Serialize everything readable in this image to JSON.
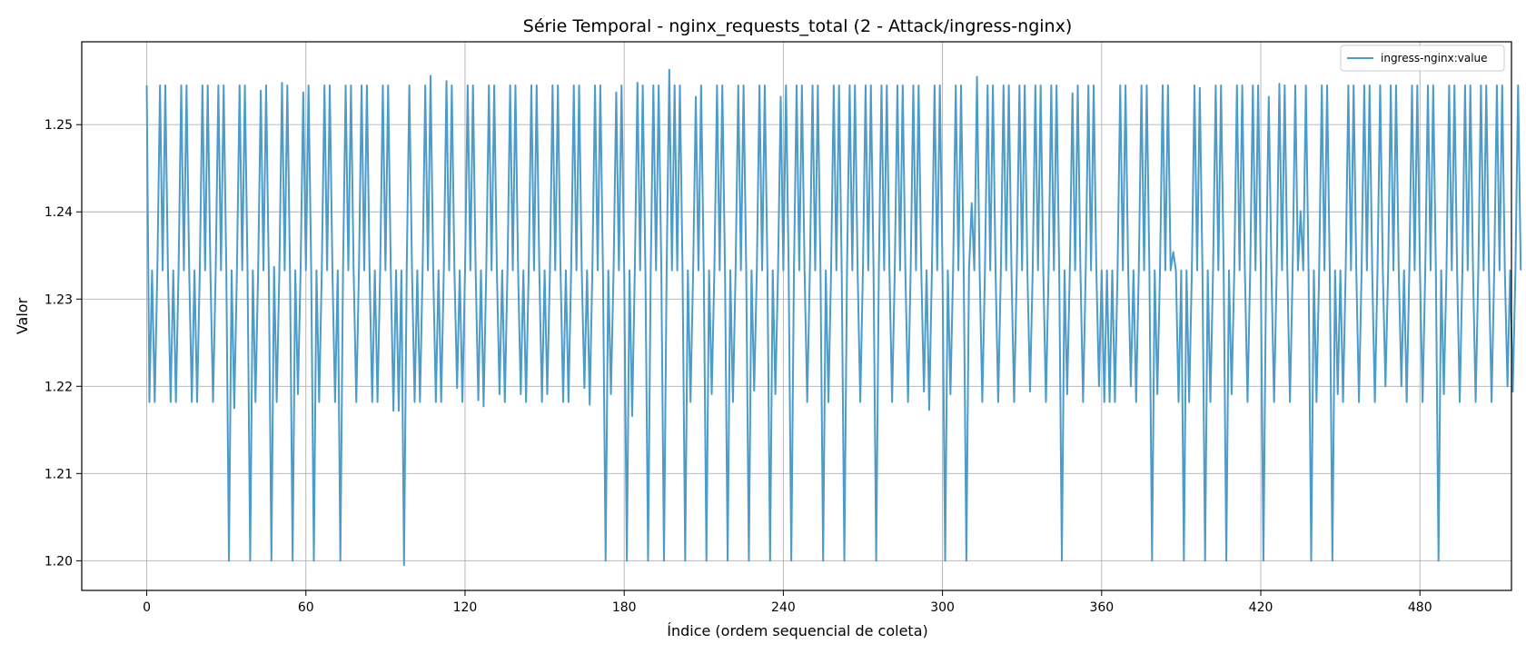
{
  "chart_data": {
    "type": "line",
    "title": "Série Temporal - nginx_requests_total (2 - Attack/ingress-nginx)",
    "xlabel": "Índice (ordem sequencial de coleta)",
    "ylabel": "Valor",
    "xlim": [
      -24.5,
      514.5
    ],
    "ylim": [
      1.1966,
      1.2595
    ],
    "grid": true,
    "x_ticks": [
      0,
      60,
      120,
      180,
      240,
      300,
      360,
      420,
      480
    ],
    "y_ticks": [
      1.2,
      1.21,
      1.22,
      1.23,
      1.24,
      1.25
    ],
    "x_tick_labels": [
      "0",
      "60",
      "120",
      "180",
      "240",
      "300",
      "360",
      "420",
      "480"
    ],
    "y_tick_labels": [
      "1.20",
      "1.21",
      "1.22",
      "1.23",
      "1.24",
      "1.25"
    ],
    "legend": {
      "position": "top-right",
      "entries": [
        "ingress-nginx:value"
      ]
    },
    "series": [
      {
        "name": "ingress-nginx:value",
        "color": "#4c9bc8",
        "x_start": 0,
        "x_step": 1,
        "values": [
          1.2545,
          1.2182,
          1.2333,
          1.2182,
          1.2333,
          1.2545,
          1.2333,
          1.2545,
          1.2333,
          1.2182,
          1.2333,
          1.2182,
          1.2333,
          1.2545,
          1.2333,
          1.2545,
          1.2333,
          1.2182,
          1.2333,
          1.2182,
          1.2333,
          1.2545,
          1.2333,
          1.2545,
          1.2333,
          1.2182,
          1.2333,
          1.2545,
          1.2333,
          1.2545,
          1.2333,
          1.2,
          1.2333,
          1.2175,
          1.2333,
          1.2545,
          1.2333,
          1.2545,
          1.2333,
          1.2,
          1.2333,
          1.2182,
          1.2333,
          1.2539,
          1.2333,
          1.2545,
          1.2333,
          1.2,
          1.2337,
          1.2182,
          1.2333,
          1.2548,
          1.2333,
          1.2545,
          1.2333,
          1.2,
          1.2333,
          1.2191,
          1.2333,
          1.2537,
          1.2333,
          1.2545,
          1.2333,
          1.2,
          1.2333,
          1.2182,
          1.2333,
          1.2545,
          1.2333,
          1.2545,
          1.2333,
          1.2182,
          1.2333,
          1.2,
          1.2333,
          1.2545,
          1.2333,
          1.2545,
          1.2333,
          1.2182,
          1.2333,
          1.2545,
          1.2333,
          1.2545,
          1.2333,
          1.2182,
          1.2333,
          1.2182,
          1.2333,
          1.2545,
          1.2333,
          1.2545,
          1.2333,
          1.2172,
          1.2333,
          1.2172,
          1.2333,
          1.1995,
          1.2333,
          1.2545,
          1.2333,
          1.2182,
          1.2333,
          1.2182,
          1.2333,
          1.2545,
          1.2333,
          1.2556,
          1.2333,
          1.2182,
          1.2333,
          1.2182,
          1.2333,
          1.255,
          1.2333,
          1.2545,
          1.2333,
          1.2198,
          1.2333,
          1.2182,
          1.2333,
          1.2545,
          1.2333,
          1.2545,
          1.2333,
          1.2184,
          1.2333,
          1.2177,
          1.2333,
          1.2545,
          1.2333,
          1.2545,
          1.2333,
          1.2191,
          1.2333,
          1.2182,
          1.2333,
          1.2545,
          1.2333,
          1.2545,
          1.2333,
          1.2191,
          1.2333,
          1.2182,
          1.2333,
          1.2545,
          1.2333,
          1.2545,
          1.2333,
          1.2182,
          1.2333,
          1.2191,
          1.2333,
          1.2545,
          1.2333,
          1.2545,
          1.2333,
          1.2182,
          1.2333,
          1.2182,
          1.2333,
          1.2545,
          1.2333,
          1.2545,
          1.2333,
          1.2198,
          1.2333,
          1.2179,
          1.2333,
          1.2545,
          1.2333,
          1.2545,
          1.2333,
          1.2,
          1.2333,
          1.2191,
          1.2333,
          1.2537,
          1.2333,
          1.2545,
          1.2333,
          1.2,
          1.2333,
          1.2166,
          1.2333,
          1.2548,
          1.2333,
          1.2545,
          1.2333,
          1.2,
          1.2333,
          1.2545,
          1.2333,
          1.2545,
          1.2333,
          1.2,
          1.2333,
          1.2563,
          1.2333,
          1.2545,
          1.2333,
          1.2545,
          1.2333,
          1.2,
          1.2333,
          1.2182,
          1.2333,
          1.2532,
          1.2333,
          1.2545,
          1.2333,
          1.2,
          1.2333,
          1.2191,
          1.2333,
          1.2545,
          1.2333,
          1.2545,
          1.2333,
          1.2,
          1.2333,
          1.2182,
          1.2333,
          1.2545,
          1.2333,
          1.2545,
          1.2333,
          1.2,
          1.2333,
          1.2195,
          1.2333,
          1.2545,
          1.2333,
          1.2545,
          1.2333,
          1.2,
          1.2333,
          1.2191,
          1.2333,
          1.2532,
          1.2333,
          1.2545,
          1.2333,
          1.2,
          1.2333,
          1.2545,
          1.2333,
          1.2545,
          1.2333,
          1.2182,
          1.2333,
          1.2545,
          1.2333,
          1.2545,
          1.2333,
          1.2,
          1.2333,
          1.2182,
          1.2333,
          1.2545,
          1.2333,
          1.2545,
          1.2333,
          1.2,
          1.2333,
          1.2545,
          1.2333,
          1.2545,
          1.2333,
          1.2182,
          1.2333,
          1.2545,
          1.2333,
          1.2545,
          1.2333,
          1.2,
          1.2333,
          1.2545,
          1.2333,
          1.2545,
          1.2333,
          1.2182,
          1.2333,
          1.2545,
          1.2333,
          1.2545,
          1.2333,
          1.2182,
          1.2333,
          1.2545,
          1.2333,
          1.2545,
          1.2333,
          1.2194,
          1.2333,
          1.2173,
          1.2333,
          1.2545,
          1.2333,
          1.2545,
          1.2333,
          1.2,
          1.2333,
          1.2191,
          1.2333,
          1.2545,
          1.2333,
          1.2545,
          1.2333,
          1.2,
          1.2333,
          1.241,
          1.2333,
          1.2555,
          1.2333,
          1.2182,
          1.2333,
          1.2545,
          1.2333,
          1.2545,
          1.2333,
          1.2182,
          1.2333,
          1.2545,
          1.2333,
          1.2545,
          1.2333,
          1.2182,
          1.2333,
          1.2545,
          1.2333,
          1.2545,
          1.2333,
          1.2194,
          1.2333,
          1.2545,
          1.2333,
          1.2545,
          1.2333,
          1.2182,
          1.2333,
          1.2545,
          1.2333,
          1.2545,
          1.2333,
          1.2,
          1.2333,
          1.2191,
          1.2333,
          1.2536,
          1.2333,
          1.2545,
          1.2333,
          1.2182,
          1.2333,
          1.2545,
          1.2333,
          1.2545,
          1.2333,
          1.22,
          1.2333,
          1.2182,
          1.2333,
          1.2182,
          1.2333,
          1.2182,
          1.2333,
          1.2545,
          1.2333,
          1.2545,
          1.2333,
          1.22,
          1.2333,
          1.2182,
          1.2333,
          1.2545,
          1.2333,
          1.2545,
          1.2333,
          1.2,
          1.2333,
          1.2191,
          1.2333,
          1.2545,
          1.2333,
          1.2545,
          1.2333,
          1.2354,
          1.2333,
          1.2182,
          1.2333,
          1.2,
          1.2333,
          1.2182,
          1.2333,
          1.2545,
          1.2333,
          1.2542,
          1.2333,
          1.2,
          1.2333,
          1.2182,
          1.2333,
          1.2545,
          1.2333,
          1.2545,
          1.2333,
          1.2,
          1.2333,
          1.2191,
          1.2333,
          1.2545,
          1.2333,
          1.2545,
          1.2333,
          1.2182,
          1.2333,
          1.2545,
          1.2333,
          1.2545,
          1.2333,
          1.2,
          1.2333,
          1.2532,
          1.2333,
          1.2182,
          1.2333,
          1.2547,
          1.2333,
          1.2545,
          1.2333,
          1.2182,
          1.2333,
          1.2545,
          1.2333,
          1.2401,
          1.2333,
          1.2545,
          1.2333,
          1.2,
          1.2333,
          1.2182,
          1.2333,
          1.2545,
          1.2333,
          1.2545,
          1.2333,
          1.2,
          1.2333,
          1.2191,
          1.2333,
          1.2182,
          1.2333,
          1.2545,
          1.2333,
          1.2545,
          1.2333,
          1.2182,
          1.2333,
          1.2545,
          1.2333,
          1.2545,
          1.2333,
          1.2182,
          1.2333,
          1.2545,
          1.2333,
          1.22,
          1.2333,
          1.2545,
          1.2333,
          1.2545,
          1.2333,
          1.22,
          1.2333,
          1.2182,
          1.2333,
          1.2545,
          1.2333,
          1.2545,
          1.2333,
          1.2182,
          1.2333,
          1.2545,
          1.2333,
          1.2545,
          1.2333,
          1.2,
          1.2333,
          1.2191,
          1.2333,
          1.2545,
          1.2333,
          1.2545,
          1.2333,
          1.2182,
          1.2333,
          1.2545,
          1.2333,
          1.2545,
          1.2333,
          1.2182,
          1.2333,
          1.2545,
          1.2333,
          1.2545,
          1.2333,
          1.2182,
          1.2333,
          1.2545,
          1.2333,
          1.2545,
          1.2333,
          1.22,
          1.2333,
          1.2194,
          1.2333,
          1.2545,
          1.2333
        ]
      }
    ]
  }
}
